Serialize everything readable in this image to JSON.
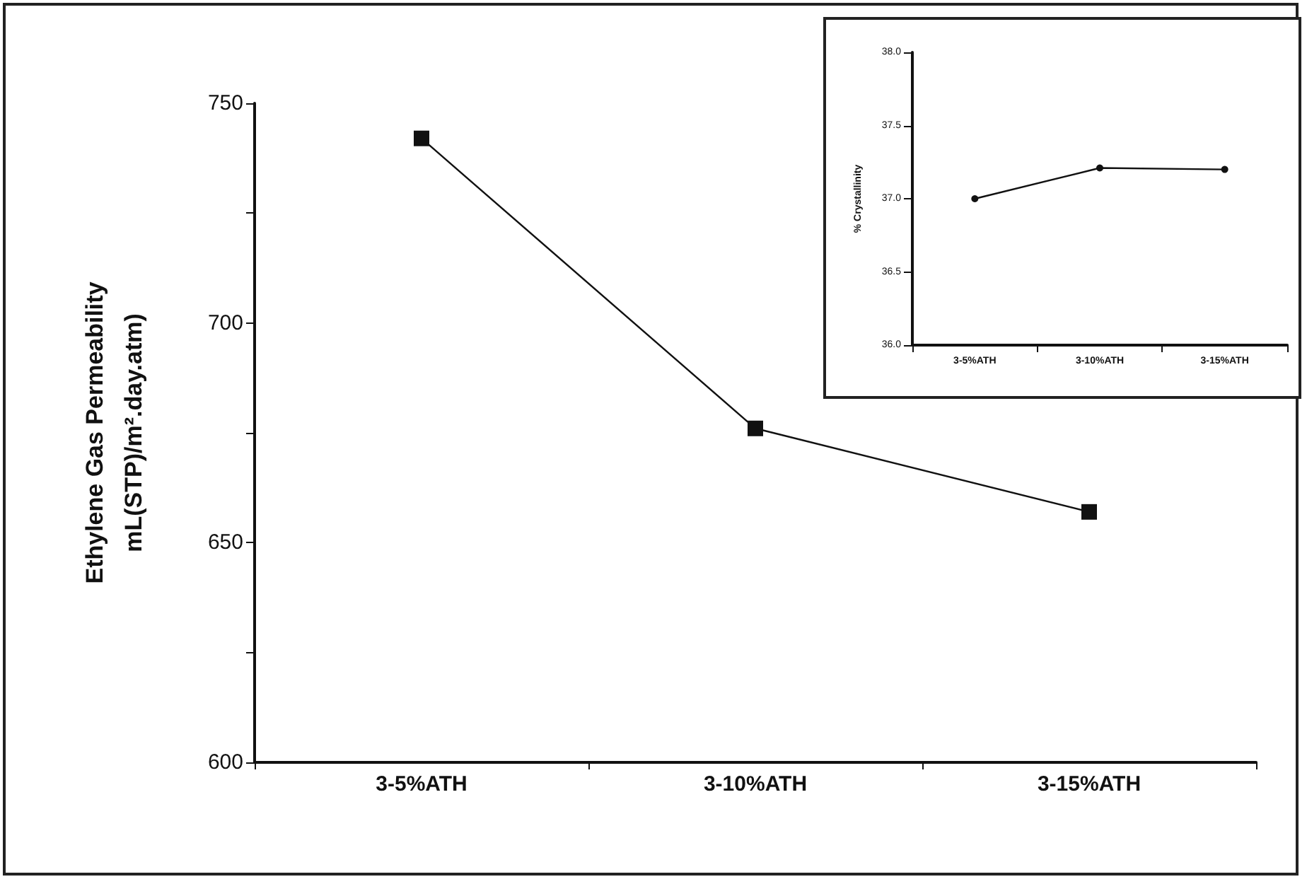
{
  "chart_data": [
    {
      "type": "line",
      "xlabel": null,
      "ylabel": "Ethylene Gas Permeability\nmL(STP)/m².day.atm)",
      "categories": [
        "3-5%ATH",
        "3-10%ATH",
        "3-15%ATH"
      ],
      "series": [
        {
          "color": "#111111",
          "values": [
            742,
            676,
            657
          ]
        }
      ],
      "ylim": [
        600,
        750
      ],
      "yticks": [
        600,
        {
          "value": 625,
          "label": null
        },
        650,
        {
          "value": 675,
          "label": null
        },
        700,
        {
          "value": 725,
          "label": null
        },
        750
      ],
      "marker": "square",
      "line_style": "solid",
      "grid": false
    },
    {
      "type": "line",
      "ylabel": "% Crystallinity",
      "categories": [
        "3-5%ATH",
        "3-10%ATH",
        "3-15%ATH"
      ],
      "series": [
        {
          "color": "#111111",
          "values": [
            37.0,
            37.21,
            37.2
          ]
        }
      ],
      "ylim": [
        36.0,
        38.0
      ],
      "yticks": [
        {
          "value": 36.0,
          "label": "36.0"
        },
        {
          "value": 36.5,
          "label": "36.5"
        },
        {
          "value": 37.0,
          "label": "37.0"
        },
        {
          "value": 37.5,
          "label": "37.5"
        },
        {
          "value": 38.0,
          "label": "38.0"
        }
      ],
      "marker": "circle",
      "line_style": "solid",
      "grid": false
    }
  ]
}
